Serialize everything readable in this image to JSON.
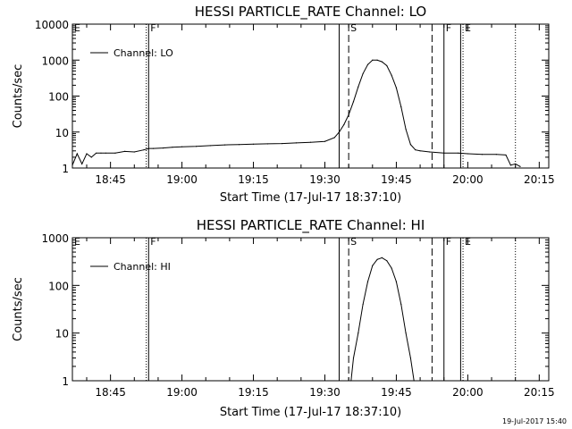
{
  "chart_data": [
    {
      "type": "line",
      "title": "HESSI PARTICLE_RATE Channel: LO",
      "xlabel": "Start Time (17-Jul-17 18:37:10)",
      "ylabel": "Counts/sec",
      "y_scale": "log",
      "ylim": [
        1,
        10000
      ],
      "y_ticks": [
        1,
        10,
        100,
        1000,
        10000
      ],
      "y_tick_labels": [
        "1",
        "10",
        "100",
        "1000",
        "10000"
      ],
      "xlim": [
        "18:37",
        "20:17"
      ],
      "x_ticks": [
        "18:45",
        "19:00",
        "19:15",
        "19:30",
        "19:45",
        "20:00",
        "20:15"
      ],
      "legend": {
        "position": "top-left",
        "entries": [
          "Channel: LO"
        ]
      },
      "grid": false,
      "markers": [
        {
          "label": "E",
          "time": "18:37",
          "style": "dotted"
        },
        {
          "label": "F",
          "time": "18:53",
          "style": "solid"
        },
        {
          "label": "",
          "time": "18:52.5",
          "style": "dotted"
        },
        {
          "label": "",
          "time": "19:33",
          "style": "solid"
        },
        {
          "label": "S",
          "time": "19:35",
          "style": "dashed"
        },
        {
          "label": "",
          "time": "19:52.5",
          "style": "dashed"
        },
        {
          "label": "F",
          "time": "19:55",
          "style": "solid"
        },
        {
          "label": "",
          "time": "19:58.5",
          "style": "solid"
        },
        {
          "label": "E",
          "time": "19:59",
          "style": "dotted"
        },
        {
          "label": "",
          "time": "20:10",
          "style": "dotted"
        }
      ],
      "series": [
        {
          "name": "Channel: LO",
          "x": [
            "18:37",
            "18:38",
            "18:39",
            "18:40",
            "18:41",
            "18:42",
            "18:43",
            "18:44",
            "18:46",
            "18:48",
            "18:50",
            "18:52",
            "18:53",
            "18:54",
            "18:56",
            "18:58",
            "19:00",
            "19:03",
            "19:06",
            "19:09",
            "19:12",
            "19:15",
            "19:18",
            "19:21",
            "19:24",
            "19:27",
            "19:30",
            "19:32",
            "19:33",
            "19:34",
            "19:35",
            "19:36",
            "19:37",
            "19:38",
            "19:39",
            "19:40",
            "19:41",
            "19:42",
            "19:43",
            "19:44",
            "19:45",
            "19:46",
            "19:47",
            "19:48",
            "19:49",
            "19:50",
            "19:52",
            "19:55",
            "19:58",
            "20:00",
            "20:03",
            "20:06",
            "20:08",
            "20:09",
            "20:10",
            "20:11"
          ],
          "values": [
            1.2,
            2.5,
            1.3,
            2.5,
            2.0,
            2.6,
            2.6,
            2.6,
            2.6,
            2.9,
            2.8,
            3.2,
            3.5,
            3.5,
            3.6,
            3.8,
            3.9,
            4.0,
            4.2,
            4.4,
            4.5,
            4.6,
            4.7,
            4.8,
            5.0,
            5.2,
            5.5,
            7,
            10,
            16,
            30,
            70,
            180,
            420,
            750,
            1000,
            1000,
            900,
            700,
            380,
            170,
            50,
            12,
            4.5,
            3.2,
            3.0,
            2.8,
            2.6,
            2.6,
            2.5,
            2.4,
            2.4,
            2.3,
            1.2,
            1.3,
            1.1
          ]
        }
      ]
    },
    {
      "type": "line",
      "title": "HESSI PARTICLE_RATE Channel: HI",
      "xlabel": "Start Time (17-Jul-17 18:37:10)",
      "ylabel": "Counts/sec",
      "y_scale": "log",
      "ylim": [
        1,
        1000
      ],
      "y_ticks": [
        1,
        10,
        100,
        1000
      ],
      "y_tick_labels": [
        "1",
        "10",
        "100",
        "1000"
      ],
      "xlim": [
        "18:37",
        "20:17"
      ],
      "x_ticks": [
        "18:45",
        "19:00",
        "19:15",
        "19:30",
        "19:45",
        "20:00",
        "20:15"
      ],
      "legend": {
        "position": "top-left",
        "entries": [
          "Channel: HI"
        ]
      },
      "grid": false,
      "markers": [
        {
          "label": "E",
          "time": "18:37",
          "style": "dotted"
        },
        {
          "label": "F",
          "time": "18:53",
          "style": "solid"
        },
        {
          "label": "",
          "time": "18:52.5",
          "style": "dotted"
        },
        {
          "label": "",
          "time": "19:33",
          "style": "solid"
        },
        {
          "label": "S",
          "time": "19:35",
          "style": "dashed"
        },
        {
          "label": "",
          "time": "19:52.5",
          "style": "dashed"
        },
        {
          "label": "F",
          "time": "19:55",
          "style": "solid"
        },
        {
          "label": "",
          "time": "19:58.5",
          "style": "solid"
        },
        {
          "label": "E",
          "time": "19:59",
          "style": "dotted"
        },
        {
          "label": "",
          "time": "20:10",
          "style": "dotted"
        }
      ],
      "series": [
        {
          "name": "Channel: HI",
          "x": [
            "19:35.5",
            "19:36",
            "19:37",
            "19:38",
            "19:39",
            "19:40",
            "19:41",
            "19:42",
            "19:43",
            "19:44",
            "19:45",
            "19:46",
            "19:47",
            "19:48",
            "19:48.7"
          ],
          "values": [
            1,
            3,
            10,
            40,
            120,
            260,
            350,
            380,
            330,
            230,
            120,
            40,
            10,
            3,
            1
          ]
        }
      ]
    }
  ],
  "footer": {
    "timestamp": "19-Jul-2017 15:40"
  }
}
